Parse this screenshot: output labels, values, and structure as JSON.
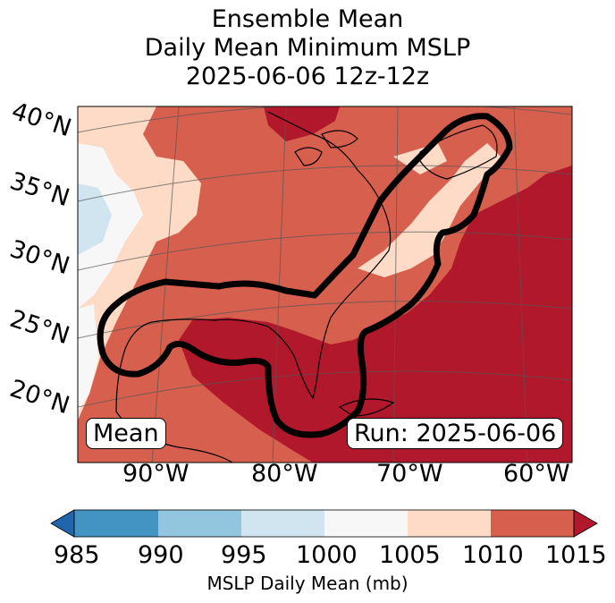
{
  "title": {
    "line1": "Ensemble Mean",
    "line2": "Daily Mean Minimum MSLP",
    "line3": "2025-06-06 12z-12z"
  },
  "map": {
    "lat_labels": [
      "40°N",
      "35°N",
      "30°N",
      "25°N",
      "20°N"
    ],
    "lon_labels": [
      "90°W",
      "80°W",
      "70°W",
      "60°W"
    ],
    "mean_label": "Mean",
    "run_label": "Run: 2025-06-06"
  },
  "colorbar": {
    "ticks": [
      "985",
      "990",
      "995",
      "1000",
      "1005",
      "1010",
      "1015"
    ],
    "colors": [
      "#2166ac",
      "#4393c3",
      "#92c5de",
      "#d1e5f0",
      "#f7f7f7",
      "#fddbc7",
      "#d6604d",
      "#b2182b"
    ],
    "label": "MSLP Daily Mean (mb)"
  }
}
